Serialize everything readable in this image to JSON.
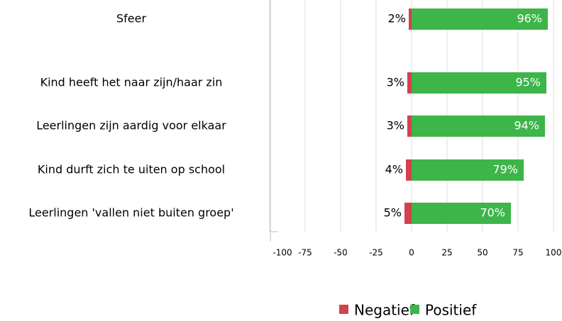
{
  "chart_data": {
    "type": "diverging-bar",
    "categories": [
      "Sfeer",
      "Kind heeft het naar zijn/haar zin",
      "Leerlingen zijn aardig voor elkaar",
      "Kind durft zich te uiten op school",
      "Leerlingen 'vallen niet buiten groep'"
    ],
    "series": [
      {
        "name": "Negatief",
        "color": "#d2414c",
        "values": [
          -2,
          -3,
          -3,
          -4,
          -5
        ],
        "value_labels": [
          "2%",
          "3%",
          "3%",
          "4%",
          "5%"
        ]
      },
      {
        "name": "Positief",
        "color": "#3db549",
        "values": [
          96,
          95,
          94,
          79,
          70
        ],
        "value_labels": [
          "96%",
          "95%",
          "94%",
          "79%",
          "70%"
        ]
      }
    ],
    "xlim": [
      -100,
      100
    ],
    "xticks": [
      -100,
      -75,
      -50,
      -25,
      0,
      25,
      50,
      75,
      100
    ],
    "grid": true,
    "legend": "bottom"
  }
}
